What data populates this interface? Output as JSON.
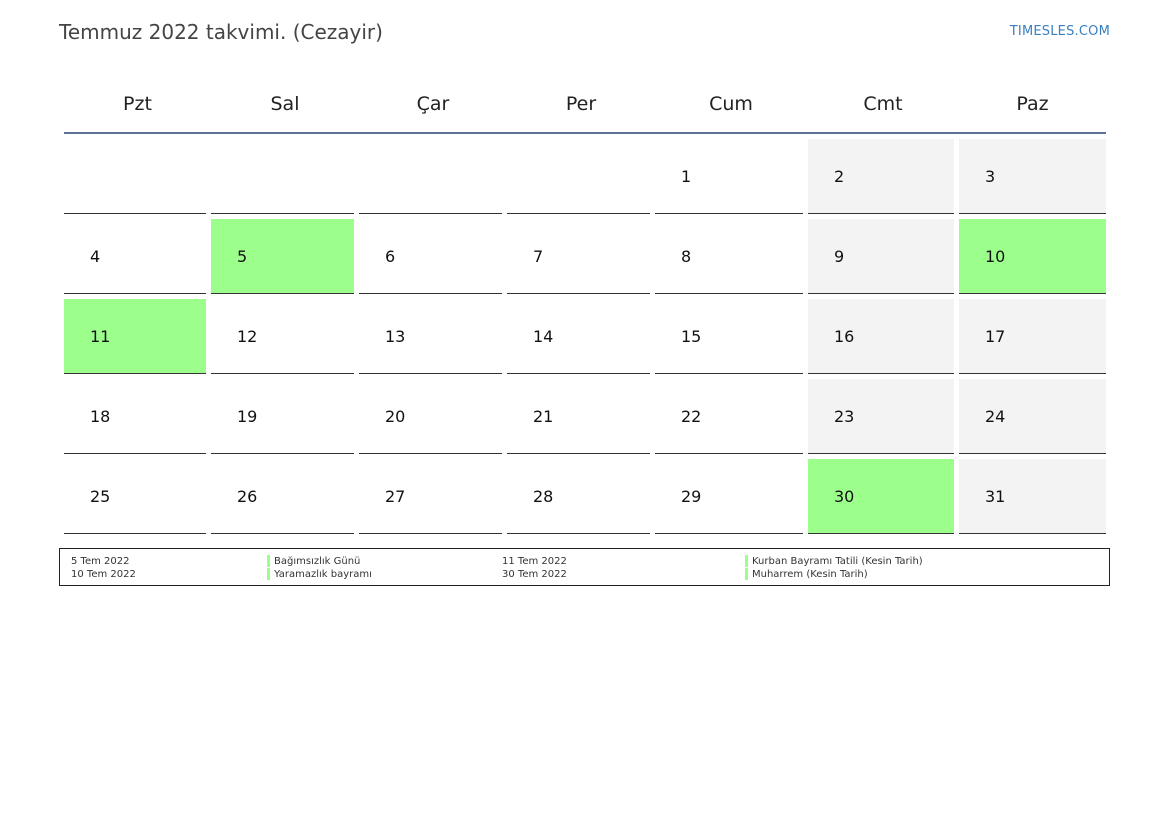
{
  "title": "Temmuz 2022 takvimi. (Cezayir)",
  "brand": "TIMESLES.COM",
  "colors": {
    "holiday": "#9cff8c",
    "weekend": "#f3f3f3",
    "header_rule": "#5a7394",
    "brand": "#3a7fc1"
  },
  "weekdays": [
    "Pzt",
    "Sal",
    "Çar",
    "Per",
    "Cum",
    "Cmt",
    "Paz"
  ],
  "weeks": [
    [
      {
        "day": "",
        "type": "empty"
      },
      {
        "day": "",
        "type": "empty"
      },
      {
        "day": "",
        "type": "empty"
      },
      {
        "day": "",
        "type": "empty"
      },
      {
        "day": "1",
        "type": "normal"
      },
      {
        "day": "2",
        "type": "weekend"
      },
      {
        "day": "3",
        "type": "weekend"
      }
    ],
    [
      {
        "day": "4",
        "type": "normal"
      },
      {
        "day": "5",
        "type": "holiday"
      },
      {
        "day": "6",
        "type": "normal"
      },
      {
        "day": "7",
        "type": "normal"
      },
      {
        "day": "8",
        "type": "normal"
      },
      {
        "day": "9",
        "type": "weekend"
      },
      {
        "day": "10",
        "type": "holiday"
      }
    ],
    [
      {
        "day": "11",
        "type": "holiday"
      },
      {
        "day": "12",
        "type": "normal"
      },
      {
        "day": "13",
        "type": "normal"
      },
      {
        "day": "14",
        "type": "normal"
      },
      {
        "day": "15",
        "type": "normal"
      },
      {
        "day": "16",
        "type": "weekend"
      },
      {
        "day": "17",
        "type": "weekend"
      }
    ],
    [
      {
        "day": "18",
        "type": "normal"
      },
      {
        "day": "19",
        "type": "normal"
      },
      {
        "day": "20",
        "type": "normal"
      },
      {
        "day": "21",
        "type": "normal"
      },
      {
        "day": "22",
        "type": "normal"
      },
      {
        "day": "23",
        "type": "weekend"
      },
      {
        "day": "24",
        "type": "weekend"
      }
    ],
    [
      {
        "day": "25",
        "type": "normal"
      },
      {
        "day": "26",
        "type": "normal"
      },
      {
        "day": "27",
        "type": "normal"
      },
      {
        "day": "28",
        "type": "normal"
      },
      {
        "day": "29",
        "type": "normal"
      },
      {
        "day": "30",
        "type": "holiday"
      },
      {
        "day": "31",
        "type": "weekend"
      }
    ]
  ],
  "legend": {
    "col1": [
      "5 Tem 2022",
      "10 Tem 2022"
    ],
    "col2": [
      "Bağımsızlık Günü",
      "Yaramazlık bayramı"
    ],
    "col3": [
      "11 Tem 2022",
      "30 Tem 2022"
    ],
    "col4": [
      "Kurban Bayramı Tatili (Kesin Tarih)",
      "Muharrem (Kesin Tarih)"
    ]
  }
}
